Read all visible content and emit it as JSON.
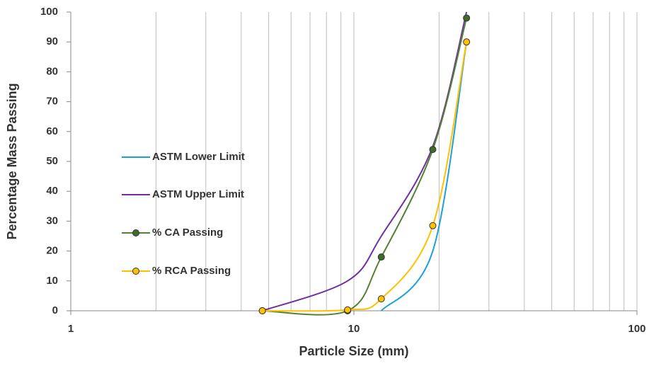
{
  "chart_data": {
    "type": "line",
    "xlabel": "Particle Size (mm)",
    "ylabel": "Percentage Mass Passing",
    "xscale": "log",
    "xlim": [
      1,
      100
    ],
    "xticks": [
      1,
      10,
      100
    ],
    "xminor_ticks": [
      2,
      3,
      4,
      5,
      6,
      7,
      8,
      9,
      20,
      30,
      40,
      50,
      60,
      70,
      80,
      90
    ],
    "ylim": [
      0,
      100
    ],
    "yticks": [
      0,
      10,
      20,
      30,
      40,
      50,
      60,
      70,
      80,
      90,
      100
    ],
    "grid": "x",
    "legend": "left",
    "series": [
      {
        "name": "ASTM Lower Limit",
        "color": "#1ba1d8",
        "marker": false,
        "x": [
          12.5,
          19,
          25
        ],
        "values": [
          0,
          20,
          90
        ]
      },
      {
        "name": "ASTM Upper Limit",
        "color": "#7030a0",
        "marker": false,
        "x": [
          4.75,
          9.5,
          12.5,
          19,
          25
        ],
        "values": [
          0,
          10,
          25,
          55,
          100
        ]
      },
      {
        "name": "% CA Passing",
        "color": "#548235",
        "marker": true,
        "marker_fill": "#3f6b28",
        "x": [
          4.75,
          9.5,
          12.5,
          19,
          25
        ],
        "values": [
          0,
          0,
          18,
          54,
          98
        ]
      },
      {
        "name": "% RCA Passing",
        "color": "#ffc000",
        "marker": true,
        "marker_fill": "#ffc000",
        "x": [
          4.75,
          9.5,
          12.5,
          19,
          25
        ],
        "values": [
          0,
          0.3,
          4,
          28.5,
          90
        ]
      }
    ]
  }
}
